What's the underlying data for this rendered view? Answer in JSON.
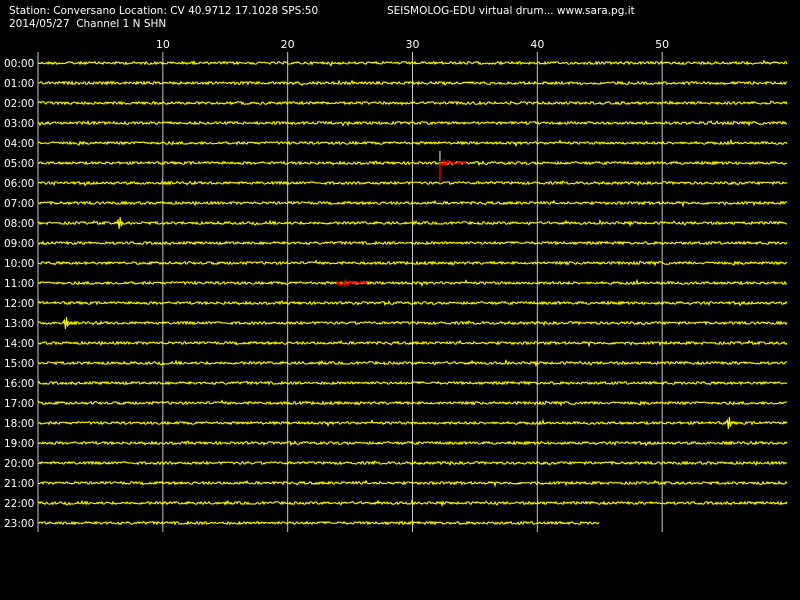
{
  "header": {
    "station_line": "Station: Conversano Location: CV 40.9712 17.1028 SPS:50",
    "date_line": "2014/05/27  Channel 1 N SHN",
    "brand_line": "SEISMOLOG-EDU virtual drum... www.sara.pg.it"
  },
  "colors": {
    "background": "#000000",
    "trace": "#ffff00",
    "event": "#ff0000",
    "grid": "#c8c8c8",
    "text": "#ffffff"
  },
  "chart_data": {
    "type": "line",
    "xlabel": "",
    "ylabel": "",
    "xlim": [
      0,
      60
    ],
    "x_ticks": [
      10,
      20,
      30,
      40,
      50
    ],
    "x_tick_labels": [
      "10",
      "20",
      "30",
      "40",
      "50"
    ],
    "rows": [
      "00:00",
      "01:00",
      "02:00",
      "03:00",
      "04:00",
      "05:00",
      "06:00",
      "07:00",
      "08:00",
      "09:00",
      "10:00",
      "11:00",
      "12:00",
      "13:00",
      "14:00",
      "15:00",
      "16:00",
      "17:00",
      "18:00",
      "19:00",
      "20:00",
      "21:00",
      "22:00",
      "23:00"
    ],
    "last_row_end_minute": 45,
    "grid": true,
    "events": [
      {
        "row": "05:00",
        "start_minute": 32.2,
        "end_minute": 34.3,
        "type": "earthquake"
      },
      {
        "row": "11:00",
        "start_minute": 23.9,
        "end_minute": 26.4,
        "type": "earthquake"
      }
    ],
    "spikes": [
      {
        "row": "18:00",
        "minute": 55.3
      },
      {
        "row": "13:00",
        "minute": 2.2
      },
      {
        "row": "08:00",
        "minute": 6.5
      }
    ]
  }
}
